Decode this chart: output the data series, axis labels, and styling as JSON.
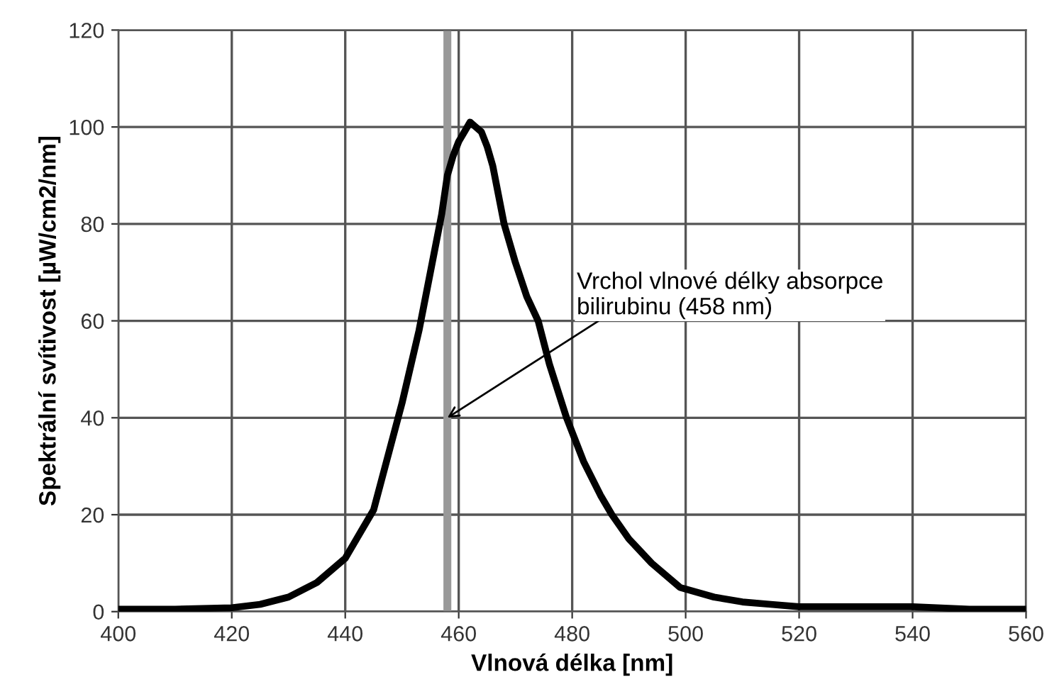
{
  "chart_data": {
    "type": "line",
    "xlabel": "Vlnová délka [nm]",
    "ylabel": "Spektrální svítivost [µW/cm2/nm]",
    "series": [
      {
        "color": "#000000",
        "x": [
          400,
          410,
          420,
          425,
          430,
          435,
          440,
          445,
          450,
          453,
          455,
          457,
          458,
          459,
          460,
          461,
          462,
          463,
          464,
          465,
          466,
          467,
          468,
          470,
          472,
          474,
          476,
          479,
          482,
          485,
          487,
          490,
          494,
          499,
          505,
          510,
          515,
          520,
          530,
          540,
          550,
          560
        ],
        "values": [
          0.5,
          0.5,
          0.8,
          1.5,
          3,
          6,
          11,
          21,
          43,
          58,
          70,
          82,
          90,
          94,
          97,
          99,
          101,
          100,
          99,
          96,
          92,
          86,
          80,
          72,
          65,
          60,
          51,
          40,
          31,
          24,
          20,
          15,
          10,
          5,
          3,
          2,
          1.5,
          1,
          1,
          1,
          0.5,
          0.5
        ]
      }
    ],
    "xlim": [
      400,
      560
    ],
    "ylim": [
      0,
      120
    ],
    "xticks": [
      400,
      420,
      440,
      460,
      480,
      500,
      520,
      540,
      560
    ],
    "yticks": [
      0,
      20,
      40,
      60,
      80,
      100,
      120
    ],
    "grid": true,
    "legend": false,
    "marker": "none",
    "line_style": "solid",
    "ref_lines": [
      {
        "axis": "x",
        "value": 458,
        "color": "#999999"
      }
    ],
    "annotations": [
      {
        "text": "Vrchol vlnové délky absorpce\nbilirubinu (458 nm)",
        "x": 458,
        "y": 40
      }
    ]
  }
}
